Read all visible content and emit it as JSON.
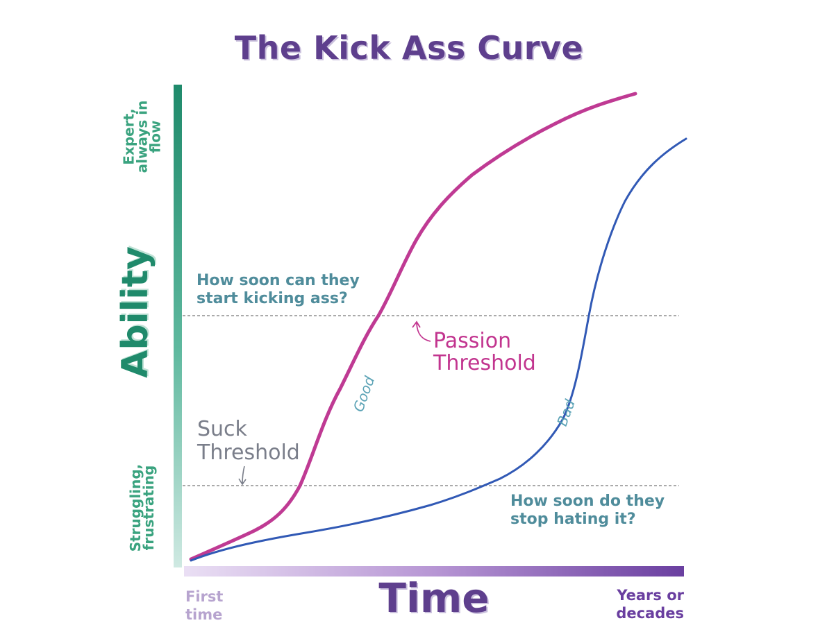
{
  "title": "The Kick Ass Curve",
  "y_axis": {
    "label": "Ability",
    "top_label": [
      "Expert,",
      "always in",
      "flow"
    ],
    "bottom_label": [
      "Struggling,",
      "frustrating"
    ]
  },
  "x_axis": {
    "label": "Time",
    "start_label": [
      "First",
      "time"
    ],
    "end_label": [
      "Years or",
      "decades"
    ]
  },
  "thresholds": {
    "passion": {
      "label": [
        "Passion",
        "Threshold"
      ],
      "question": [
        "How soon can they",
        "start kicking ass?"
      ]
    },
    "suck": {
      "label": [
        "Suck",
        "Threshold"
      ],
      "question": [
        "How soon do they",
        "stop hating it?"
      ]
    }
  },
  "curves": {
    "good": {
      "label": "Good",
      "color": "#bf3a93"
    },
    "bad": {
      "label": "Bad",
      "color": "#3159b5"
    }
  },
  "colors": {
    "title": "#5e3f8d",
    "ability_axis": "#1f8a6b",
    "time_axis": "#6a3fa0",
    "threshold_line": "#777777",
    "note_text": "#4f8c9b"
  }
}
